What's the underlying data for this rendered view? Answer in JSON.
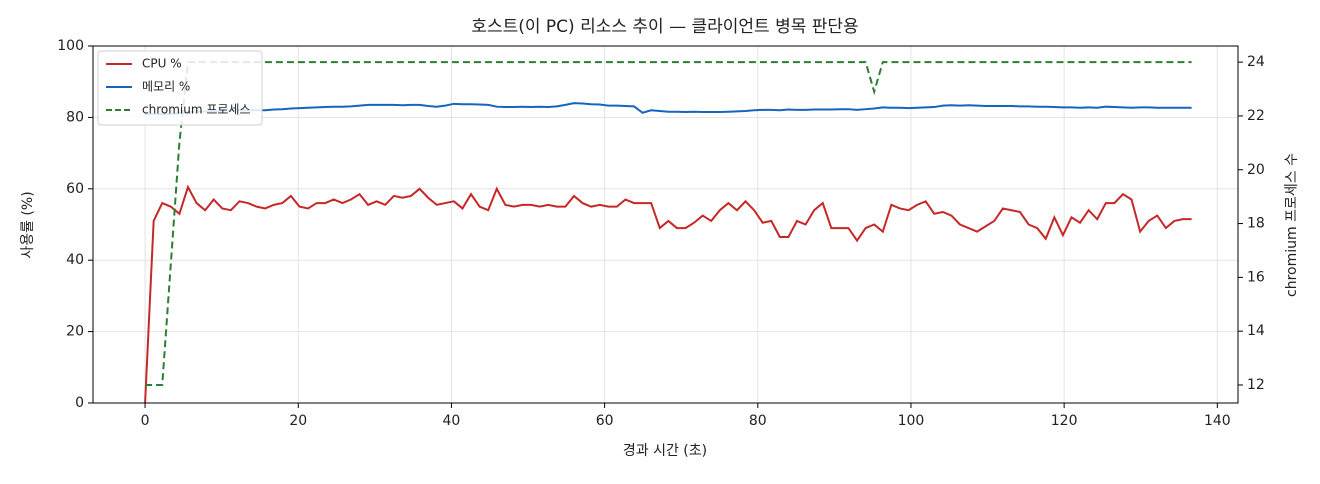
{
  "chart_data": {
    "type": "line",
    "title": "호스트(이 PC) 리소스 추이 — 클라이언트 병목 판단용",
    "xlabel": "경과 시간 (초)",
    "ylabel": "사용률 (%)",
    "y2label": "chromium 프로세스 수",
    "grid": true,
    "legend": "upper left",
    "xlim": [
      -6.8,
      142.7
    ],
    "xticks": [
      0,
      20,
      40,
      60,
      80,
      100,
      120,
      140
    ],
    "ylim": [
      0,
      100
    ],
    "yticks": [
      0,
      20,
      40,
      60,
      80,
      100
    ],
    "y2lim": [
      11.33,
      24.6
    ],
    "y2ticks": [
      12,
      14,
      16,
      18,
      20,
      22,
      24
    ],
    "x": [
      0,
      1.12,
      2.24,
      3.36,
      4.48,
      5.6,
      6.72,
      7.84,
      8.96,
      10.08,
      11.2,
      12.32,
      13.44,
      14.56,
      15.68,
      16.8,
      17.92,
      19.04,
      20.16,
      21.28,
      22.4,
      23.52,
      24.64,
      25.76,
      26.88,
      28,
      29.12,
      30.24,
      31.36,
      32.48,
      33.6,
      34.72,
      35.84,
      36.96,
      38.08,
      39.2,
      40.32,
      41.44,
      42.56,
      43.68,
      44.8,
      45.92,
      47.04,
      48.16,
      49.28,
      50.4,
      51.52,
      52.64,
      53.76,
      54.88,
      56,
      57.12,
      58.24,
      59.36,
      60.48,
      61.6,
      62.72,
      63.84,
      64.96,
      66.08,
      67.2,
      68.32,
      69.44,
      70.56,
      71.68,
      72.8,
      73.92,
      75.04,
      76.16,
      77.28,
      78.4,
      79.52,
      80.64,
      81.76,
      82.88,
      84,
      85.12,
      86.24,
      87.36,
      88.48,
      89.6,
      90.72,
      91.84,
      92.96,
      94.08,
      95.2,
      96.32,
      97.44,
      98.56,
      99.68,
      100.8,
      101.92,
      103.04,
      104.16,
      105.28,
      106.4,
      107.52,
      108.64,
      109.76,
      110.88,
      112,
      113.12,
      114.24,
      115.36,
      116.48,
      117.6,
      118.72,
      119.84,
      120.96,
      122.08,
      123.2,
      124.32,
      125.44,
      126.56,
      127.68,
      128.8,
      129.92,
      131.04,
      132.16,
      133.28,
      134.4,
      135.52,
      136.64
    ],
    "series": [
      {
        "name": "CPU %",
        "color": "#c62828",
        "linestyle": "solid",
        "values": [
          0,
          51,
          56,
          55,
          53,
          60.5,
          56,
          54,
          57,
          54.5,
          54,
          56.5,
          56,
          55,
          54.5,
          55.5,
          56,
          58,
          55,
          54.5,
          56,
          56,
          57,
          56,
          57,
          58.5,
          55.5,
          56.5,
          55.5,
          58,
          57.5,
          58,
          60,
          57.5,
          55.5,
          56,
          56.5,
          54.5,
          58.5,
          55,
          54,
          60,
          55.5,
          55,
          55.5,
          55.5,
          55,
          55.5,
          55,
          55,
          58,
          56,
          55,
          55.5,
          55,
          55,
          57,
          56,
          56,
          56,
          49,
          51,
          49,
          49,
          50.5,
          52.5,
          51,
          54,
          56,
          54,
          56.5,
          54,
          50.5,
          51,
          46.5,
          46.5,
          51,
          50,
          54,
          56,
          49,
          49,
          49,
          45.5,
          49,
          50,
          48,
          55.5,
          54.5,
          54,
          55.5,
          56.5,
          53,
          53.5,
          52.5,
          50,
          49,
          48,
          49.5,
          51,
          54.5,
          54,
          53.5,
          50,
          49,
          46,
          52,
          47,
          52,
          50.5,
          54,
          51.5,
          56,
          56,
          58.5,
          57,
          48,
          51,
          52.5,
          49,
          51,
          51.5,
          51.5
        ]
      },
      {
        "name": "메모리 %",
        "color": "#1565c0",
        "linestyle": "solid",
        "values": [
          81,
          81,
          81,
          81,
          81.2,
          81.5,
          81.6,
          81.7,
          81.8,
          81.9,
          82,
          82,
          82,
          82,
          82,
          82.2,
          82.3,
          82.5,
          82.6,
          82.7,
          82.8,
          82.9,
          83,
          83,
          83.1,
          83.3,
          83.5,
          83.5,
          83.5,
          83.5,
          83.4,
          83.5,
          83.5,
          83.2,
          83,
          83.3,
          83.8,
          83.7,
          83.7,
          83.6,
          83.5,
          83,
          82.9,
          82.9,
          83,
          82.9,
          83,
          82.9,
          83.1,
          83.5,
          84,
          83.9,
          83.7,
          83.6,
          83.3,
          83.3,
          83.2,
          83.1,
          81.3,
          82,
          81.8,
          81.6,
          81.6,
          81.5,
          81.6,
          81.5,
          81.5,
          81.5,
          81.6,
          81.7,
          81.8,
          82,
          82.1,
          82.1,
          82,
          82.2,
          82.1,
          82.1,
          82.2,
          82.2,
          82.2,
          82.3,
          82.3,
          82.1,
          82.3,
          82.5,
          82.8,
          82.7,
          82.7,
          82.6,
          82.7,
          82.8,
          82.9,
          83.3,
          83.4,
          83.3,
          83.4,
          83.3,
          83.2,
          83.2,
          83.2,
          83.2,
          83.1,
          83.1,
          83,
          83,
          82.9,
          82.8,
          82.8,
          82.7,
          82.8,
          82.7,
          83,
          82.9,
          82.8,
          82.7,
          82.8,
          82.8,
          82.7,
          82.7,
          82.7,
          82.7,
          82.7
        ]
      },
      {
        "name": "chromium 프로세스",
        "color": "#2e7d32",
        "linestyle": "dashed",
        "axis": "y2",
        "values": [
          12,
          12,
          12,
          16.5,
          21,
          24,
          24,
          24,
          24,
          24,
          24,
          24,
          24,
          24,
          24,
          24,
          24,
          24,
          24,
          24,
          24,
          24,
          24,
          24,
          24,
          24,
          24,
          24,
          24,
          24,
          24,
          24,
          24,
          24,
          24,
          24,
          24,
          24,
          24,
          24,
          24,
          24,
          24,
          24,
          24,
          24,
          24,
          24,
          24,
          24,
          24,
          24,
          24,
          24,
          24,
          24,
          24,
          24,
          24,
          24,
          24,
          24,
          24,
          24,
          24,
          24,
          24,
          24,
          24,
          24,
          24,
          24,
          24,
          24,
          24,
          24,
          24,
          24,
          24,
          24,
          24,
          24,
          24,
          24,
          24,
          22.9,
          24,
          24,
          24,
          24,
          24,
          24,
          24,
          24,
          24,
          24,
          24,
          24,
          24,
          24,
          24,
          24,
          24,
          24,
          24,
          24,
          24,
          24,
          24,
          24,
          24,
          24,
          24,
          24,
          24,
          24,
          24,
          24,
          24,
          24,
          24,
          24,
          24
        ]
      }
    ]
  }
}
